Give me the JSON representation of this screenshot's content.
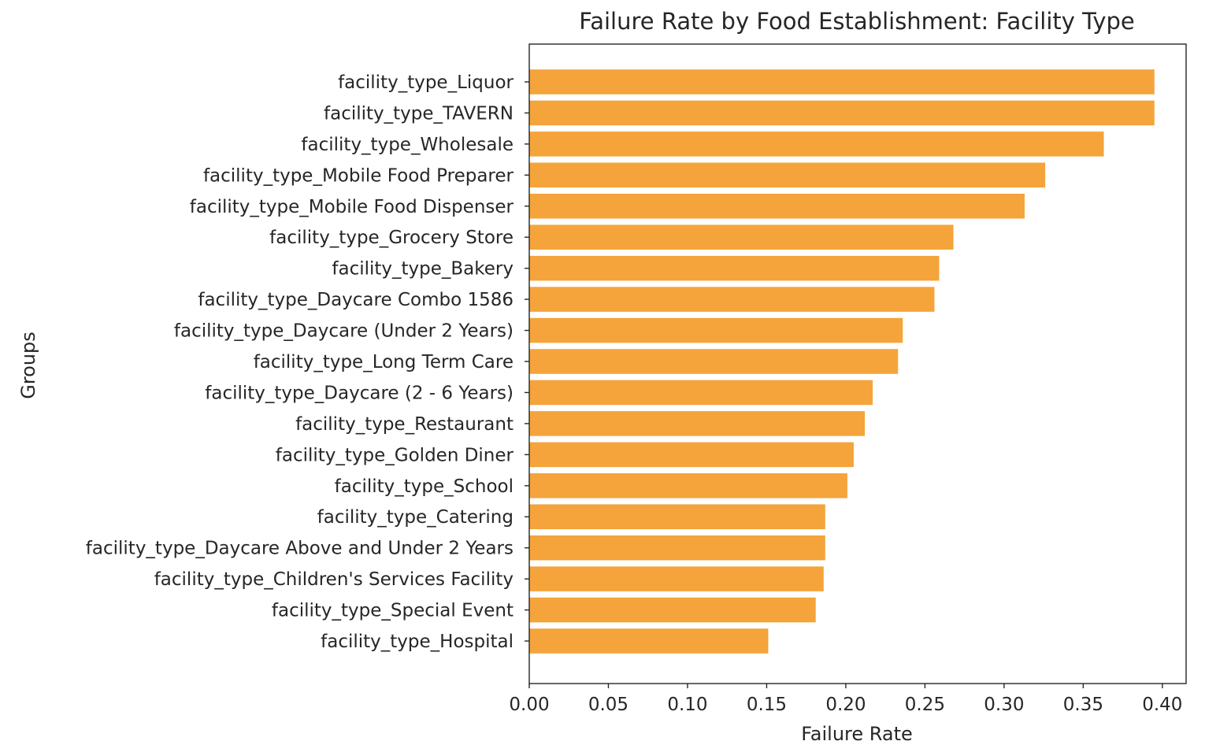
{
  "chart_data": {
    "type": "bar",
    "orientation": "horizontal",
    "title": "Failure Rate by Food Establishment: Facility Type",
    "xlabel": "Failure Rate",
    "ylabel": "Groups",
    "xlim": [
      0.0,
      0.415
    ],
    "xticks": [
      "0.00",
      "0.05",
      "0.10",
      "0.15",
      "0.20",
      "0.25",
      "0.30",
      "0.35",
      "0.40"
    ],
    "bar_color": "#f4a43a",
    "grid": false,
    "categories": [
      "facility_type_Liquor",
      "facility_type_TAVERN",
      "facility_type_Wholesale",
      "facility_type_Mobile Food Preparer",
      "facility_type_Mobile Food Dispenser",
      "facility_type_Grocery Store",
      "facility_type_Bakery",
      "facility_type_Daycare Combo 1586",
      "facility_type_Daycare (Under 2 Years)",
      "facility_type_Long Term Care",
      "facility_type_Daycare (2 - 6 Years)",
      "facility_type_Restaurant",
      "facility_type_Golden Diner",
      "facility_type_School",
      "facility_type_Catering",
      "facility_type_Daycare Above and Under 2 Years",
      "facility_type_Children's Services Facility",
      "facility_type_Special Event",
      "facility_type_Hospital"
    ],
    "values": [
      0.395,
      0.395,
      0.363,
      0.326,
      0.313,
      0.268,
      0.259,
      0.256,
      0.236,
      0.233,
      0.217,
      0.212,
      0.205,
      0.201,
      0.187,
      0.187,
      0.186,
      0.181,
      0.151
    ]
  }
}
